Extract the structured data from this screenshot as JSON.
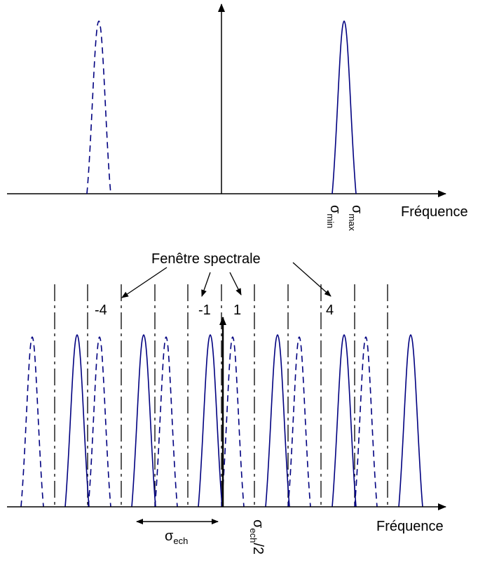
{
  "top_plot": {
    "axis_label": "Fréquence",
    "sigma_min": {
      "symbol": "σ",
      "sub": "min"
    },
    "sigma_max": {
      "symbol": "σ",
      "sub": "max"
    }
  },
  "bottom_plot": {
    "axis_label": "Fréquence",
    "window_label": "Fenêtre spectrale",
    "window_numbers": [
      "-4",
      "-1",
      "1",
      "4"
    ],
    "sigma_ech": {
      "symbol": "σ",
      "sub": "ech"
    },
    "sigma_ech_half": {
      "symbol": "σ",
      "sub": "ech",
      "suffix": "/2"
    }
  },
  "colors": {
    "spectrum": "#000080",
    "axes": "#000000"
  }
}
